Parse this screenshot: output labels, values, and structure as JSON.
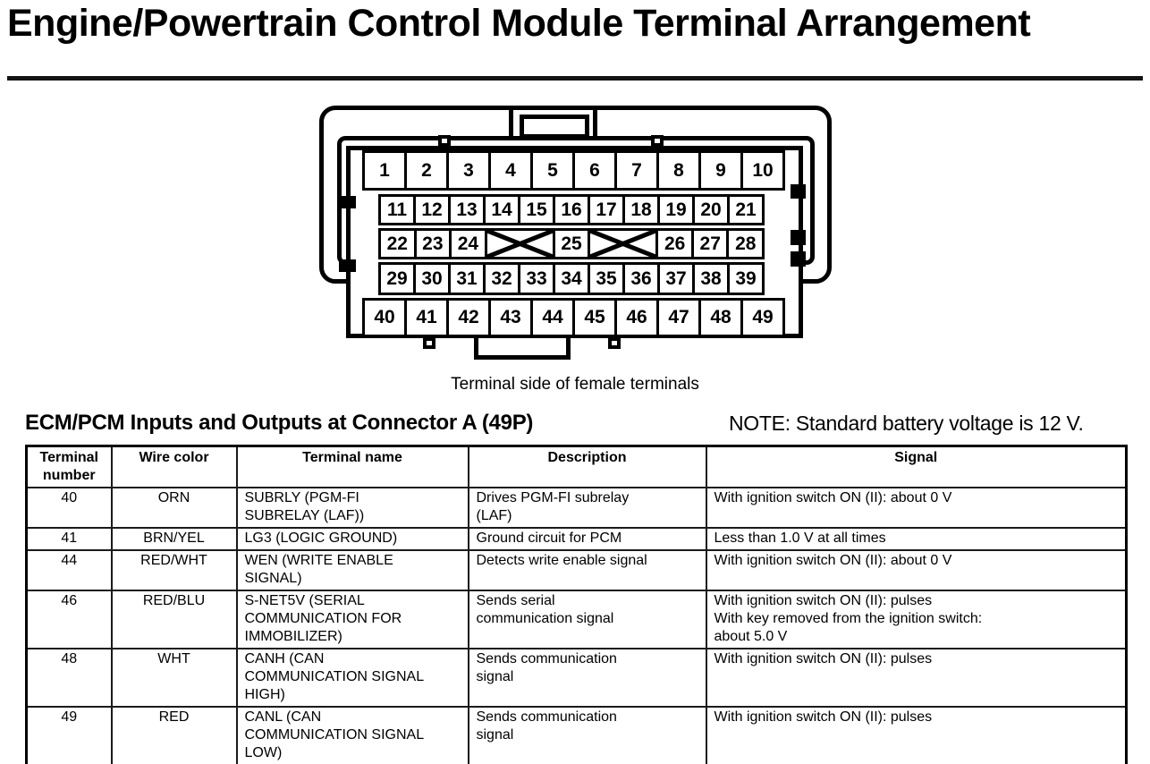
{
  "page": {
    "title": "Engine/Powertrain Control Module Terminal Arrangement"
  },
  "connector": {
    "caption": "Terminal side of female terminals",
    "rows": [
      {
        "cells": [
          {
            "label": "1"
          },
          {
            "label": "2"
          },
          {
            "label": "3"
          },
          {
            "label": "4"
          },
          {
            "label": "5"
          },
          {
            "label": "6"
          },
          {
            "label": "7"
          },
          {
            "label": "8"
          },
          {
            "label": "9"
          },
          {
            "label": "10"
          }
        ]
      },
      {
        "cells": [
          {
            "label": "11"
          },
          {
            "label": "12"
          },
          {
            "label": "13"
          },
          {
            "label": "14"
          },
          {
            "label": "15"
          },
          {
            "label": "16"
          },
          {
            "label": "17"
          },
          {
            "label": "18"
          },
          {
            "label": "19"
          },
          {
            "label": "20"
          },
          {
            "label": "21"
          }
        ]
      },
      {
        "cells": [
          {
            "label": "22"
          },
          {
            "label": "23"
          },
          {
            "label": "24"
          },
          {
            "label": "",
            "crossed": true,
            "span": 2
          },
          {
            "label": "25"
          },
          {
            "label": "",
            "crossed": true,
            "span": 2
          },
          {
            "label": "26"
          },
          {
            "label": "27"
          },
          {
            "label": "28"
          }
        ]
      },
      {
        "cells": [
          {
            "label": "29"
          },
          {
            "label": "30"
          },
          {
            "label": "31"
          },
          {
            "label": "32"
          },
          {
            "label": "33"
          },
          {
            "label": "34"
          },
          {
            "label": "35"
          },
          {
            "label": "36"
          },
          {
            "label": "37"
          },
          {
            "label": "38"
          },
          {
            "label": "39"
          }
        ]
      },
      {
        "cells": [
          {
            "label": "40"
          },
          {
            "label": "41"
          },
          {
            "label": "42"
          },
          {
            "label": "43"
          },
          {
            "label": "44"
          },
          {
            "label": "45"
          },
          {
            "label": "46"
          },
          {
            "label": "47"
          },
          {
            "label": "48"
          },
          {
            "label": "49"
          }
        ]
      }
    ]
  },
  "section": {
    "heading": "ECM/PCM Inputs and Outputs at Connector A (49P)",
    "note": "NOTE: Standard battery voltage is 12 V."
  },
  "table": {
    "headers": {
      "terminal": "Terminal\nnumber",
      "wire": "Wire color",
      "name": "Terminal name",
      "description": "Description",
      "signal": "Signal"
    },
    "rows": [
      {
        "terminal": "40",
        "wire": "ORN",
        "name": "SUBRLY (PGM-FI\nSUBRELAY (LAF))",
        "description": "Drives PGM-FI subrelay\n(LAF)",
        "signal": "With ignition switch ON (II): about 0 V",
        "lines": 2
      },
      {
        "terminal": "41",
        "wire": "BRN/YEL",
        "name": "LG3 (LOGIC GROUND)",
        "description": "Ground circuit for PCM",
        "signal": "Less than 1.0 V at all times",
        "lines": 1
      },
      {
        "terminal": "44",
        "wire": "RED/WHT",
        "name": "WEN (WRITE ENABLE\nSIGNAL)",
        "description": "Detects write enable signal",
        "signal": "With ignition switch ON (II): about 0 V",
        "lines": 2
      },
      {
        "terminal": "46",
        "wire": "RED/BLU",
        "name": "S-NET5V (SERIAL\nCOMMUNICATION FOR\nIMMOBILIZER)",
        "description": "Sends serial\ncommunication signal",
        "signal": "With ignition switch ON (II): pulses\nWith key removed from the ignition switch:\nabout 5.0 V",
        "lines": 3
      },
      {
        "terminal": "48",
        "wire": "WHT",
        "name": "CANH (CAN\nCOMMUNICATION SIGNAL\nHIGH)",
        "description": "Sends communication\nsignal",
        "signal": "With ignition switch ON (II): pulses",
        "lines": 3
      },
      {
        "terminal": "49",
        "wire": "RED",
        "name": "CANL (CAN\nCOMMUNICATION SIGNAL\nLOW)",
        "description": "Sends communication\nsignal",
        "signal": "With ignition switch ON (II): pulses",
        "lines": 3
      }
    ]
  },
  "colors": {
    "ink": "#000000",
    "background": "#ffffff"
  }
}
